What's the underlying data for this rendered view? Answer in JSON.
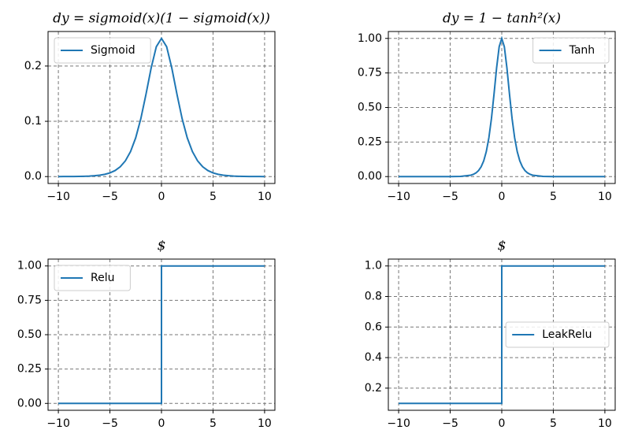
{
  "chart_data": [
    {
      "type": "line",
      "title": "dy = sigmoid(x)(1 − sigmoid(x))",
      "x": [
        -10,
        -9.5,
        -9,
        -8.5,
        -8,
        -7.5,
        -7,
        -6.5,
        -6,
        -5.5,
        -5,
        -4.5,
        -4,
        -3.5,
        -3,
        -2.5,
        -2,
        -1.5,
        -1,
        -0.5,
        0,
        0.5,
        1,
        1.5,
        2,
        2.5,
        3,
        3.5,
        4,
        4.5,
        5,
        5.5,
        6,
        6.5,
        7,
        7.5,
        8,
        8.5,
        9,
        9.5,
        10
      ],
      "series": [
        {
          "name": "Sigmoid",
          "color": "#1f77b4",
          "values": [
            5e-05,
            7e-05,
            0.00012,
            0.0002,
            0.00034,
            0.00055,
            0.00091,
            0.0015,
            0.00247,
            0.00405,
            0.00665,
            0.0109,
            0.0177,
            0.0285,
            0.0452,
            0.0701,
            0.105,
            0.1491,
            0.1966,
            0.235,
            0.25,
            0.235,
            0.1966,
            0.1491,
            0.105,
            0.0701,
            0.0452,
            0.0285,
            0.0177,
            0.0109,
            0.00665,
            0.00405,
            0.00247,
            0.0015,
            0.00091,
            0.00055,
            0.00034,
            0.0002,
            0.00012,
            7e-05,
            5e-05
          ]
        }
      ],
      "xlim": [
        -11,
        11
      ],
      "ylim": [
        -0.0125,
        0.2625
      ],
      "xticks": [
        {
          "value": -10,
          "label": "−10"
        },
        {
          "value": -5,
          "label": "−5"
        },
        0,
        5,
        10
      ],
      "yticks": [
        {
          "value": 0,
          "label": "0.0"
        },
        {
          "value": 0.1,
          "label": "0.1"
        },
        {
          "value": 0.2,
          "label": "0.2"
        }
      ],
      "grid": true,
      "legend": "upper-left"
    },
    {
      "type": "line",
      "title": "dy = 1 − tanh²(x)",
      "x": [
        -10,
        -9,
        -8,
        -7,
        -6,
        -5,
        -4,
        -3,
        -2.75,
        -2.5,
        -2.25,
        -2,
        -1.75,
        -1.5,
        -1.25,
        -1,
        -0.75,
        -0.5,
        -0.25,
        0,
        0.25,
        0.5,
        0.75,
        1,
        1.25,
        1.5,
        1.75,
        2,
        2.25,
        2.5,
        2.75,
        3,
        4,
        5,
        6,
        7,
        8,
        9,
        10
      ],
      "series": [
        {
          "name": "Tanh",
          "color": "#1f77b4",
          "values": [
            0,
            0,
            0,
            0,
            2e-05,
            0.0002,
            0.0013,
            0.0099,
            0.0162,
            0.0266,
            0.0435,
            0.0707,
            0.1138,
            0.1807,
            0.2805,
            0.42,
            0.5967,
            0.7864,
            0.94,
            1,
            0.94,
            0.7864,
            0.5967,
            0.42,
            0.2805,
            0.1807,
            0.1138,
            0.0707,
            0.0435,
            0.0266,
            0.0162,
            0.0099,
            0.0013,
            0.0002,
            2e-05,
            0,
            0,
            0,
            0
          ]
        }
      ],
      "xlim": [
        -11,
        11
      ],
      "ylim": [
        -0.05,
        1.05
      ],
      "xticks": [
        {
          "value": -10,
          "label": "−10"
        },
        {
          "value": -5,
          "label": "−5"
        },
        0,
        5,
        10
      ],
      "yticks": [
        {
          "value": 0,
          "label": "0.00"
        },
        {
          "value": 0.25,
          "label": "0.25"
        },
        {
          "value": 0.5,
          "label": "0.50"
        },
        {
          "value": 0.75,
          "label": "0.75"
        },
        {
          "value": 1,
          "label": "1.00"
        }
      ],
      "grid": true,
      "legend": "upper-right"
    },
    {
      "type": "line",
      "title": "$",
      "x": [
        -10,
        0,
        0,
        10
      ],
      "series": [
        {
          "name": "Relu",
          "color": "#1f77b4",
          "values": [
            0,
            0,
            1,
            1
          ]
        }
      ],
      "xlim": [
        -11,
        11
      ],
      "ylim": [
        -0.05,
        1.05
      ],
      "xticks": [
        {
          "value": -10,
          "label": "−10"
        },
        {
          "value": -5,
          "label": "−5"
        },
        0,
        5,
        10
      ],
      "yticks": [
        {
          "value": 0,
          "label": "0.00"
        },
        {
          "value": 0.25,
          "label": "0.25"
        },
        {
          "value": 0.5,
          "label": "0.50"
        },
        {
          "value": 0.75,
          "label": "0.75"
        },
        {
          "value": 1,
          "label": "1.00"
        }
      ],
      "grid": true,
      "legend": "upper-left"
    },
    {
      "type": "line",
      "title": "$",
      "x": [
        -10,
        0,
        0,
        10
      ],
      "series": [
        {
          "name": "LeakRelu",
          "color": "#1f77b4",
          "values": [
            0.1,
            0.1,
            1,
            1
          ]
        }
      ],
      "xlim": [
        -11,
        11
      ],
      "ylim": [
        0.055,
        1.045
      ],
      "xticks": [
        {
          "value": -10,
          "label": "−10"
        },
        {
          "value": -5,
          "label": "−5"
        },
        0,
        5,
        10
      ],
      "yticks": [
        {
          "value": 0.2,
          "label": "0.2"
        },
        {
          "value": 0.4,
          "label": "0.4"
        },
        {
          "value": 0.6,
          "label": "0.6"
        },
        {
          "value": 0.8,
          "label": "0.8"
        },
        {
          "value": 1,
          "label": "1.0"
        }
      ],
      "grid": true,
      "legend": "center-right"
    }
  ]
}
